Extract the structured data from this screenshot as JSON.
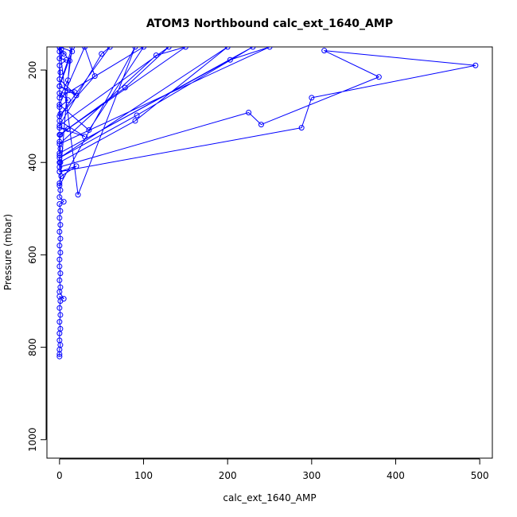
{
  "chart_data": {
    "type": "line",
    "title": "ATOM3 Northbound calc_ext_1640_AMP",
    "xlabel": "calc_ext_1640_AMP",
    "ylabel": "Pressure (mbar)",
    "xlim": [
      -15,
      515
    ],
    "ylim": [
      1040,
      150
    ],
    "x_ticks": [
      0,
      100,
      200,
      300,
      400,
      500
    ],
    "y_ticks": [
      200,
      400,
      600,
      800,
      1000
    ],
    "y_reversed": true,
    "grid": false,
    "legend": "none",
    "line_color": "#0000ff",
    "marker": "open-circle",
    "series": [
      {
        "points": [
          [
            0,
            820
          ],
          [
            0,
            815
          ],
          [
            0,
            805
          ],
          [
            1,
            795
          ],
          [
            0,
            785
          ],
          [
            0,
            770
          ],
          [
            1,
            760
          ],
          [
            0,
            745
          ],
          [
            1,
            730
          ],
          [
            0,
            715
          ],
          [
            1,
            700
          ],
          [
            0,
            690
          ],
          [
            5,
            695
          ],
          [
            0,
            680
          ],
          [
            1,
            670
          ],
          [
            0,
            655
          ],
          [
            1,
            640
          ],
          [
            0,
            625
          ],
          [
            0,
            610
          ],
          [
            1,
            595
          ],
          [
            0,
            580
          ],
          [
            1,
            565
          ],
          [
            0,
            550
          ],
          [
            1,
            535
          ],
          [
            0,
            520
          ],
          [
            1,
            505
          ],
          [
            0,
            490
          ],
          [
            5,
            485
          ],
          [
            0,
            475
          ],
          [
            1,
            460
          ],
          [
            0,
            445
          ],
          [
            2,
            430
          ],
          [
            20,
            408
          ],
          [
            0,
            420
          ],
          [
            1,
            400
          ],
          [
            0,
            385
          ],
          [
            1,
            370
          ],
          [
            0,
            355
          ],
          [
            1,
            340
          ],
          [
            10,
            328
          ],
          [
            0,
            325
          ],
          [
            30,
            344
          ],
          [
            0,
            310
          ],
          [
            1,
            295
          ],
          [
            0,
            280
          ],
          [
            10,
            265
          ],
          [
            0,
            250
          ],
          [
            18,
            248
          ],
          [
            0,
            235
          ],
          [
            20,
            255
          ],
          [
            0,
            220
          ],
          [
            1,
            205
          ],
          [
            0,
            190
          ],
          [
            8,
            178
          ],
          [
            0,
            175
          ],
          [
            5,
            165
          ],
          [
            0,
            160
          ],
          [
            2,
            155
          ],
          [
            0,
            150
          ],
          [
            0,
            410
          ],
          [
            225,
            292
          ],
          [
            240,
            318
          ],
          [
            380,
            215
          ],
          [
            315,
            158
          ],
          [
            495,
            190
          ],
          [
            300,
            260
          ],
          [
            288,
            325
          ],
          [
            0,
            420
          ],
          [
            0,
            400
          ],
          [
            90,
            310
          ],
          [
            200,
            150
          ],
          [
            0,
            390
          ],
          [
            92,
            298
          ],
          [
            230,
            150
          ],
          [
            0,
            380
          ],
          [
            203,
            178
          ],
          [
            250,
            150
          ],
          [
            0,
            360
          ],
          [
            115,
            168
          ],
          [
            150,
            150
          ],
          [
            0,
            340
          ],
          [
            78,
            238
          ],
          [
            130,
            150
          ],
          [
            0,
            320
          ],
          [
            50,
            165
          ],
          [
            60,
            150
          ],
          [
            0,
            300
          ],
          [
            42,
            213
          ],
          [
            30,
            150
          ],
          [
            0,
            275
          ],
          [
            35,
            330
          ],
          [
            100,
            150
          ],
          [
            0,
            260
          ],
          [
            10,
            222
          ],
          [
            15,
            150
          ],
          [
            0,
            235
          ],
          [
            15,
            160
          ],
          [
            0,
            150
          ],
          [
            22,
            470
          ],
          [
            90,
            150
          ],
          [
            0,
            450
          ],
          [
            12,
            180
          ],
          [
            0,
            150
          ]
        ]
      }
    ]
  }
}
